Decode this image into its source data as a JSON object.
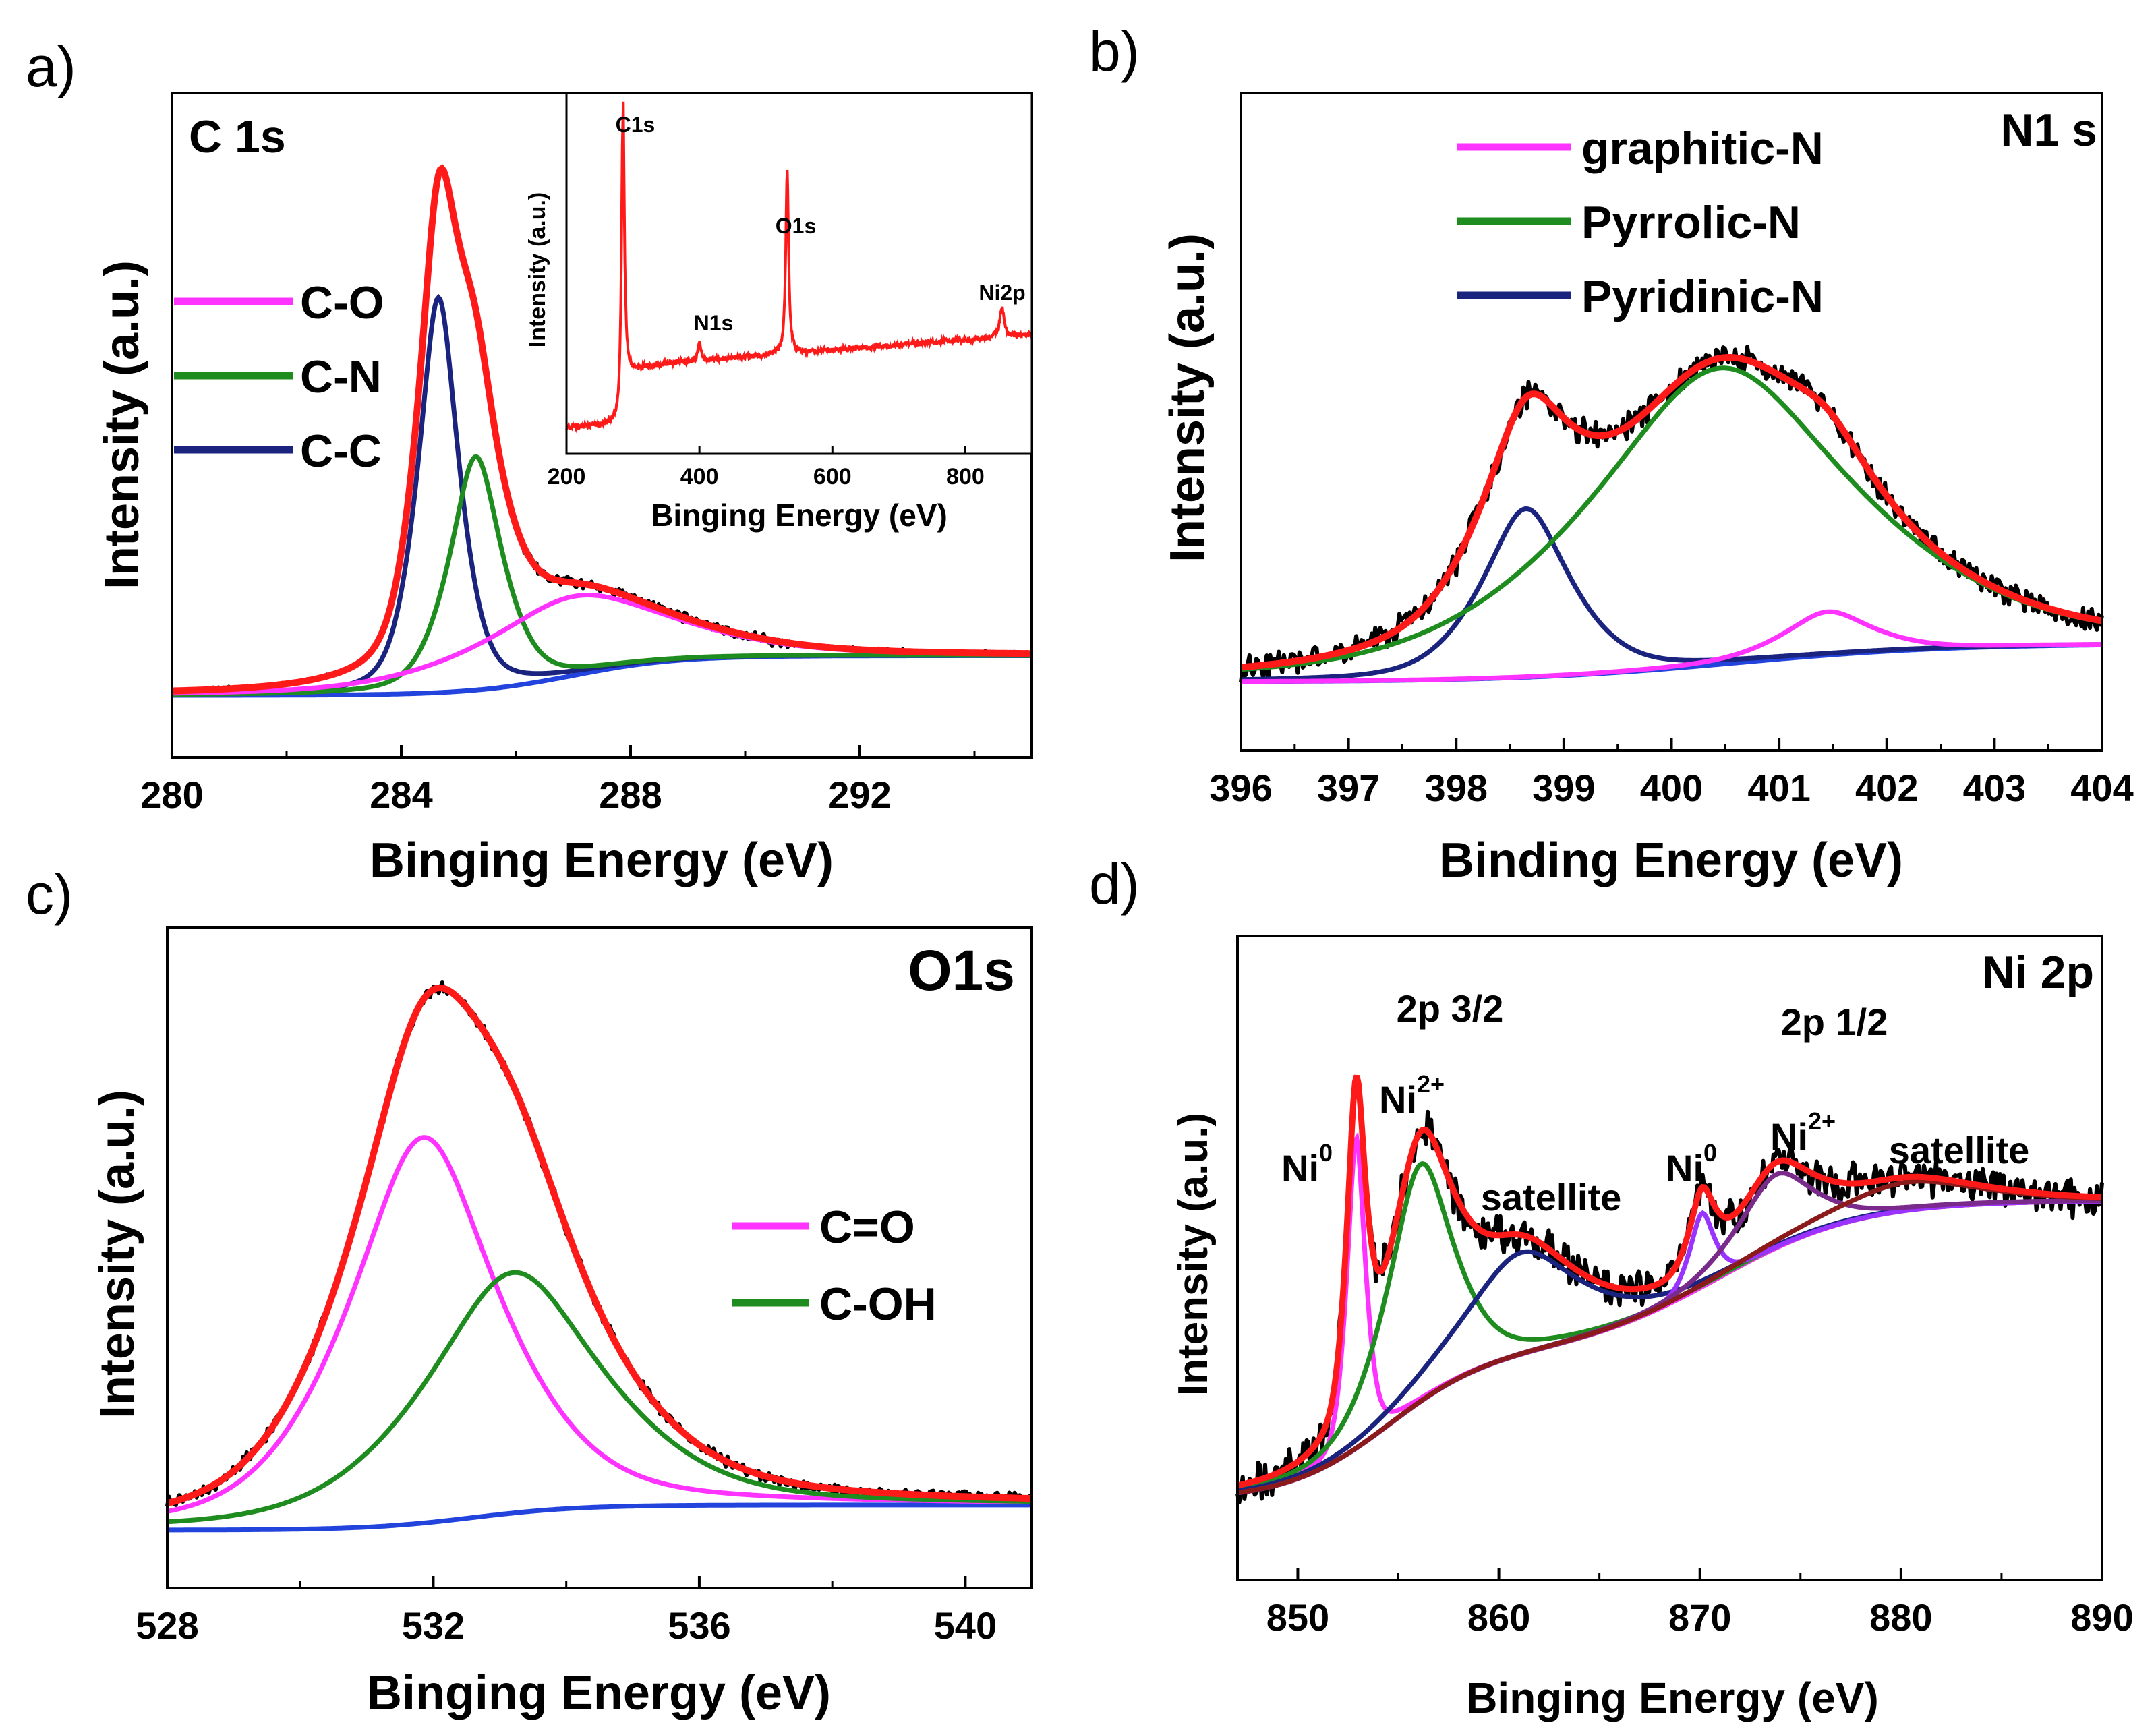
{
  "colors": {
    "raw": "#000000",
    "envelope": "#ff1a1a",
    "magenta": "#ff33ff",
    "green": "#1e8c1e",
    "navy": "#1a237e",
    "blue": "#2244dd",
    "purple": "#9933ff",
    "violet": "#7a2a8a",
    "brown": "#8b1a1a"
  },
  "chart_data": [
    {
      "panel": "a)",
      "type": "line",
      "title": "C 1s",
      "xlabel": "Binging Energy (eV)",
      "ylabel": "Intensity (a.u.)",
      "xlim": [
        280,
        295
      ],
      "ylim": [
        0,
        1.1
      ],
      "xticks": [
        280,
        284,
        288,
        292
      ],
      "legend": {
        "position": "left",
        "entries": [
          "C-O",
          "C-N",
          "C-C"
        ]
      },
      "background": {
        "low": 0.03,
        "high": 0.085,
        "center": 287.0,
        "width": 0.9
      },
      "peaks": [
        {
          "name": "C-C",
          "center": 284.65,
          "amp": 0.55,
          "width": 0.35,
          "color": "navy"
        },
        {
          "name": "C-N",
          "center": 285.3,
          "amp": 0.325,
          "width": 0.45,
          "color": "green"
        },
        {
          "name": "C-O",
          "center": 287.0,
          "amp": 0.11,
          "width": 1.6,
          "color": "magenta"
        }
      ],
      "inset": {
        "type": "line",
        "xlabel": "Binging Energy (eV)",
        "ylabel": "Intensity (a.u.)",
        "xlim": [
          200,
          900
        ],
        "ylim": [
          0,
          1
        ],
        "xticks": [
          200,
          400,
          600,
          800
        ],
        "baseline": {
          "start": 0.04,
          "jump_at": 285,
          "after_jump": 0.23,
          "end": 0.33
        },
        "peaks": [
          {
            "name": "C1s",
            "center": 284.8,
            "amp": 0.95,
            "width": 2.5
          },
          {
            "name": "N1s",
            "center": 400,
            "amp": 0.06,
            "width": 2.5
          },
          {
            "name": "O1s",
            "center": 532,
            "amp": 0.58,
            "width": 2.5
          },
          {
            "name": "Ni2p",
            "center": 855,
            "amp": 0.09,
            "width": 4
          }
        ],
        "labels": [
          "C1s",
          "N1s",
          "O1s",
          "Ni2p"
        ]
      }
    },
    {
      "panel": "b)",
      "type": "line",
      "title": "N1 s",
      "xlabel": "Binding Energy (eV)",
      "ylabel": "Intensity (a.u.)",
      "xlim": [
        396,
        404
      ],
      "ylim": [
        0,
        1.1
      ],
      "xticks": [
        396,
        397,
        398,
        399,
        400,
        401,
        402,
        403,
        404
      ],
      "legend": {
        "position": "top-center",
        "entries": [
          "graphitic-N",
          "Pyrrolic-N",
          "Pyridinic-N"
        ]
      },
      "background": {
        "low": 0.055,
        "high": 0.13,
        "center": 400.6,
        "width": 1.0
      },
      "peaks": [
        {
          "name": "Pyridinic-N",
          "center": 398.65,
          "amp": 0.33,
          "width": 0.4,
          "color": "navy"
        },
        {
          "name": "Pyrrolic-N",
          "center": 400.45,
          "amp": 0.58,
          "width": 1.2,
          "color": "green"
        },
        {
          "name": "graphitic-N",
          "center": 401.45,
          "amp": 0.085,
          "width": 0.4,
          "color": "magenta"
        }
      ]
    },
    {
      "panel": "c)",
      "type": "line",
      "title": "O1s",
      "xlabel": "Binging Energy (eV)",
      "ylabel": "Intensity (a.u.)",
      "xlim": [
        528,
        541
      ],
      "ylim": [
        0,
        1.1
      ],
      "xticks": [
        528,
        532,
        536,
        540
      ],
      "legend": {
        "position": "center-right",
        "entries": [
          "C=O",
          "C-OH"
        ]
      },
      "background": {
        "low": 0.035,
        "high": 0.085,
        "center": 532.6,
        "width": 0.8
      },
      "peaks": [
        {
          "name": "C=O",
          "center": 531.85,
          "amp": 0.77,
          "width": 1.1,
          "color": "magenta"
        },
        {
          "name": "C-OH",
          "center": 533.2,
          "amp": 0.48,
          "width": 1.3,
          "color": "green"
        }
      ]
    },
    {
      "panel": "d)",
      "type": "line",
      "title": "Ni 2p",
      "xlabel": "Binging Energy (eV)",
      "ylabel": "Intensity (a.u.)",
      "xlim": [
        847,
        890
      ],
      "ylim": [
        0,
        1.1
      ],
      "xticks": [
        850,
        860,
        870,
        880,
        890
      ],
      "background": {
        "low": 0.07,
        "mid": 0.33,
        "high": 0.6,
        "step1": 854.5,
        "step2": 871.0
      },
      "peaks": [
        {
          "name": "Ni0 (2p 3/2)",
          "center": 852.9,
          "amp": 0.55,
          "width": 0.45,
          "color": "magenta"
        },
        {
          "name": "Ni2+ (2p 3/2)",
          "center": 856.1,
          "amp": 0.42,
          "width": 1.6,
          "color": "green"
        },
        {
          "name": "satellite (2p 3/2)",
          "center": 861.1,
          "amp": 0.18,
          "width": 2.8,
          "color": "navy"
        },
        {
          "name": "Ni0 (2p 1/2)",
          "center": 870.1,
          "amp": 0.13,
          "width": 0.6,
          "color": "purple"
        },
        {
          "name": "Ni2+ (2p 1/2)",
          "center": 873.8,
          "amp": 0.13,
          "width": 1.8,
          "color": "violet"
        },
        {
          "name": "satellite (2p 1/2)",
          "center": 880.3,
          "amp": 0.05,
          "width": 3.5,
          "color": "brown"
        }
      ],
      "annotations": [
        "2p 3/2",
        "2p 1/2",
        "satellite",
        "satellite"
      ],
      "species": [
        {
          "base": "Ni",
          "sup": "0"
        },
        {
          "base": "Ni",
          "sup": "2+"
        },
        {
          "base": "Ni",
          "sup": "0"
        },
        {
          "base": "Ni",
          "sup": "2+"
        }
      ]
    }
  ]
}
